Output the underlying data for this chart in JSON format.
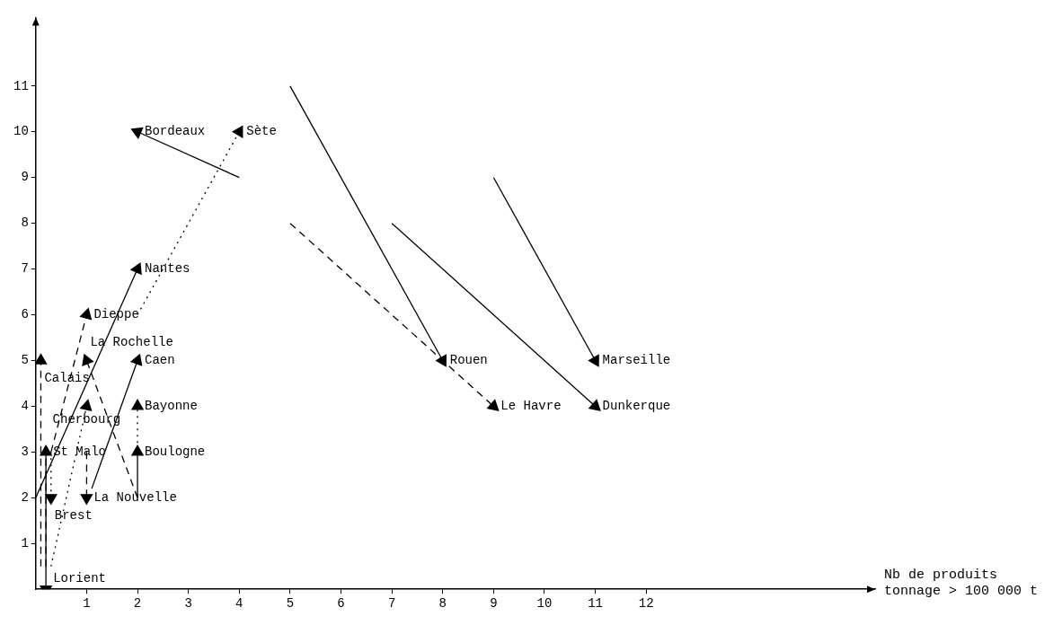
{
  "chart_data": {
    "type": "line",
    "xlabel": "Nb de produits\ntonnage > 100 000 t",
    "xlim": [
      0,
      16.5
    ],
    "ylim": [
      0,
      12.5
    ],
    "xticks": [
      1,
      2,
      3,
      4,
      5,
      6,
      7,
      8,
      9,
      10,
      11,
      12
    ],
    "yticks": [
      1,
      2,
      3,
      4,
      5,
      6,
      7,
      8,
      9,
      10,
      11
    ],
    "grid": false,
    "marker": "triangle",
    "series": [
      {
        "name": "Rouen",
        "color": "#000000",
        "line_style": "solid",
        "x": [
          5,
          8
        ],
        "values": [
          11,
          5
        ]
      },
      {
        "name": "Marseille",
        "color": "#000000",
        "line_style": "solid",
        "x": [
          9,
          11
        ],
        "values": [
          9,
          5
        ]
      },
      {
        "name": "Dunkerque",
        "color": "#000000",
        "line_style": "solid",
        "x": [
          7,
          11
        ],
        "values": [
          8,
          4
        ]
      },
      {
        "name": "Le Havre",
        "color": "#000000",
        "line_style": "dashed",
        "x": [
          5,
          9
        ],
        "values": [
          8,
          4
        ]
      },
      {
        "name": "Bordeaux",
        "color": "#000000",
        "line_style": "solid",
        "x": [
          4,
          2
        ],
        "values": [
          9,
          10
        ]
      },
      {
        "name": "Sète",
        "color": "#000000",
        "line_style": "dotted",
        "x": [
          2,
          4
        ],
        "values": [
          6,
          10
        ]
      },
      {
        "name": "Nantes",
        "color": "#000000",
        "line_style": "solid",
        "x": [
          0,
          2
        ],
        "values": [
          2,
          7
        ]
      },
      {
        "name": "Dieppe",
        "color": "#000000",
        "line_style": "dashed",
        "x": [
          0.3,
          1
        ],
        "values": [
          3,
          6
        ]
      },
      {
        "name": "La Rochelle",
        "color": "#000000",
        "line_style": "dashed",
        "x": [
          2,
          1
        ],
        "values": [
          2,
          5
        ]
      },
      {
        "name": "Caen",
        "color": "#000000",
        "line_style": "solid",
        "x": [
          1.1,
          2
        ],
        "values": [
          2.2,
          5
        ]
      },
      {
        "name": "Cherbourg",
        "color": "#000000",
        "line_style": "dotted",
        "x": [
          0.3,
          1
        ],
        "values": [
          0.5,
          4
        ]
      },
      {
        "name": "Bayonne",
        "color": "#000000",
        "line_style": "dotted",
        "x": [
          2,
          2
        ],
        "values": [
          3.2,
          4
        ]
      },
      {
        "name": "Boulogne",
        "color": "#000000",
        "line_style": "solid",
        "x": [
          2,
          2
        ],
        "values": [
          2,
          3
        ]
      },
      {
        "name": "La Nouvelle",
        "color": "#000000",
        "line_style": "dashed",
        "x": [
          1,
          1
        ],
        "values": [
          3,
          2
        ]
      },
      {
        "name": "Calais",
        "color": "#000000",
        "line_style": "dashed",
        "x": [
          0.1,
          0.1
        ],
        "values": [
          0.5,
          5
        ]
      },
      {
        "name": "St Malo",
        "color": "#000000",
        "line_style": "dashed",
        "x": [
          0.2,
          0.2
        ],
        "values": [
          0.5,
          3
        ]
      },
      {
        "name": "Brest",
        "color": "#000000",
        "line_style": "dotted",
        "x": [
          0.3,
          0.3
        ],
        "values": [
          3,
          2
        ]
      },
      {
        "name": "Lorient",
        "color": "#000000",
        "line_style": "solid",
        "x": [
          0.2,
          0.2
        ],
        "values": [
          3,
          0
        ]
      }
    ]
  }
}
